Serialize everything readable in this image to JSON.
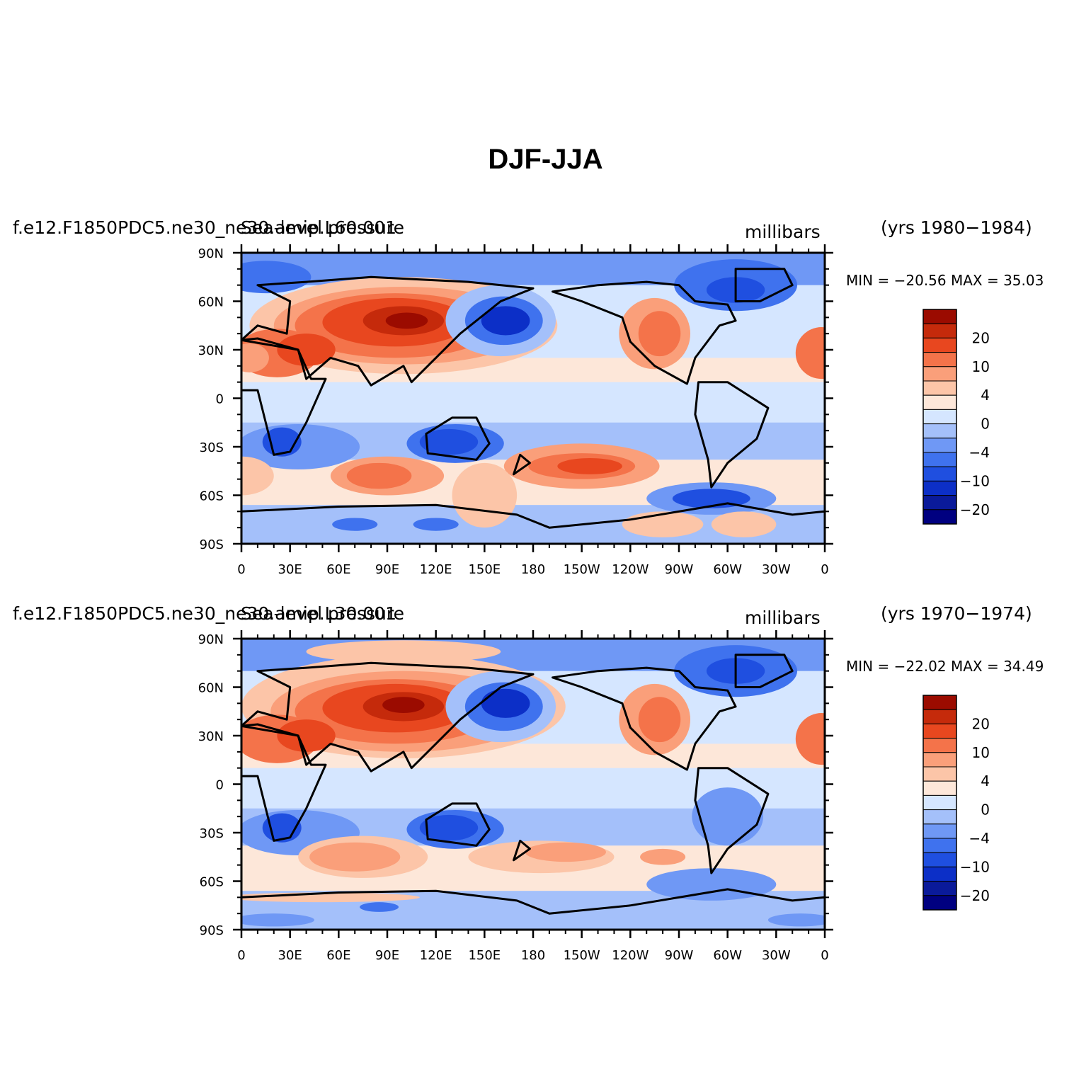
{
  "title": "DJF-JJA",
  "colors": {
    "levels_palette": [
      "#000080",
      "#0a1a9a",
      "#0c2fc7",
      "#1f4fe0",
      "#3f72ee",
      "#6f98f5",
      "#a4c0fa",
      "#d5e6ff",
      "#fde7d9",
      "#fcc5a8",
      "#fa9f7a",
      "#f4734a",
      "#e8471f",
      "#c52a0b",
      "#9b0b00"
    ],
    "land_outline": "#000000"
  },
  "colorbar": {
    "labels": [
      "20",
      "10",
      "4",
      "0",
      "−4",
      "−10",
      "−20"
    ]
  },
  "panels": [
    {
      "left_title": "f.e12.F1850PDC5.ne30_ne30.amip.L60.001",
      "left_subtitle": "Sea-level pressure",
      "units": "millibars",
      "years": "(yrs 1980−1984)",
      "minmax": "MIN = −20.56 MAX =  35.03"
    },
    {
      "left_title": "f.e12.F1850PDC5.ne30_ne30.amip.L30.001",
      "left_subtitle": "Sea-level pressure",
      "units": "millibars",
      "years": "(yrs 1970−1974)",
      "minmax": "MIN = −22.02 MAX =  34.49"
    }
  ],
  "map": {
    "lat_labels": [
      "90N",
      "60N",
      "30N",
      "0",
      "30S",
      "60S",
      "90S"
    ],
    "lon_labels": [
      "0",
      "30E",
      "60E",
      "90E",
      "120E",
      "150E",
      "180",
      "150W",
      "120W",
      "90W",
      "60W",
      "30W",
      "0"
    ]
  }
}
